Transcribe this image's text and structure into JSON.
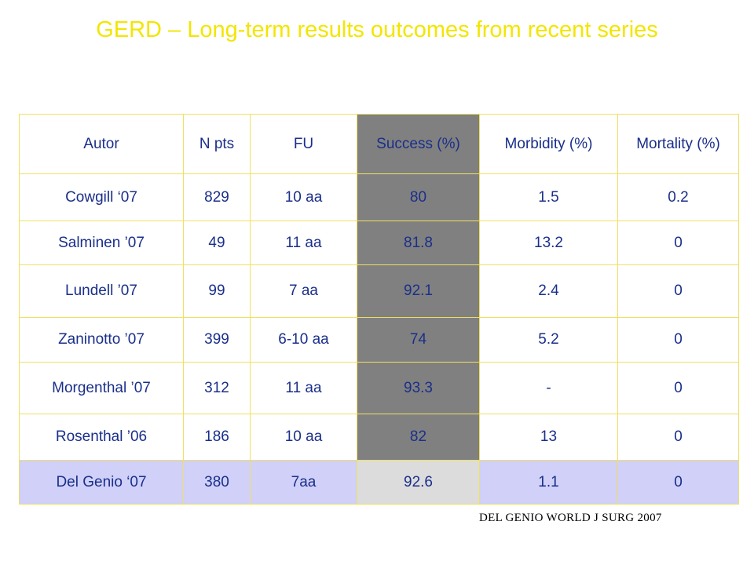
{
  "title": "GERD – Long-term results outcomes from recent series",
  "table": {
    "headers": {
      "autor": "Autor",
      "npts": "N pts",
      "fu": "FU",
      "success": "Success (%)",
      "morbidity": "Morbidity (%)",
      "mortality": "Mortality (%)"
    },
    "rows": [
      {
        "autor": "Cowgill ‘07",
        "npts": "829",
        "fu": "10 aa",
        "success": "80",
        "morbidity": "1.5",
        "mortality": "0.2"
      },
      {
        "autor": "Salminen ’07",
        "npts": "49",
        "fu": "11 aa",
        "success": "81.8",
        "morbidity": "13.2",
        "mortality": "0"
      },
      {
        "autor": "Lundell ’07",
        "npts": "99",
        "fu": "7 aa",
        "success": "92.1",
        "morbidity": "2.4",
        "mortality": "0"
      },
      {
        "autor": "Zaninotto ’07",
        "npts": "399",
        "fu": "6-10 aa",
        "success": "74",
        "morbidity": "5.2",
        "mortality": "0"
      },
      {
        "autor": "Morgenthal ’07",
        "npts": "312",
        "fu": "11 aa",
        "success": "93.3",
        "morbidity": "-",
        "mortality": "0"
      },
      {
        "autor": "Rosenthal ’06",
        "npts": "186",
        "fu": "10 aa",
        "success": "82",
        "morbidity": "13",
        "mortality": "0"
      },
      {
        "autor": "Del Genio ‘07",
        "npts": "380",
        "fu": "7aa",
        "success": "92.6",
        "morbidity": "1.1",
        "mortality": "0"
      }
    ]
  },
  "source": "DEL GENIO WORLD J SURG 2007",
  "colors": {
    "title": "#f2e600",
    "text": "#1a2f8a",
    "success_column": "#808080",
    "success_text": "#f7ef00",
    "highlight_row": "#d0d0f8",
    "highlight_success": "#dcdcdc",
    "grid": "#f0e060"
  }
}
